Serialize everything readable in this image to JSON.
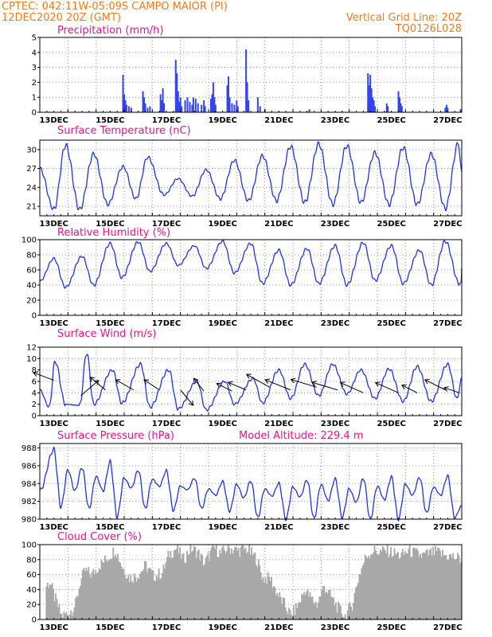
{
  "header": {
    "line1_left": "CPTEC:   042:11W-05:09S   CAMPO MAIOR (PI)",
    "line2_left": "12DEC2020 20Z (GMT)",
    "line1_right": "Vertical Grid Line: 20Z",
    "line2_right": "TQ0126L028"
  },
  "x_axis": {
    "labels": [
      "13DEC",
      "15DEC",
      "17DEC",
      "19DEC",
      "21DEC",
      "23DEC",
      "25DEC",
      "27DEC"
    ],
    "start_hours": 0,
    "end_hours": 360
  },
  "colors": {
    "line": "#2233dd",
    "bar": "#3344ee",
    "cloud": "#a8a8a8",
    "header": "#f07c1c",
    "title": "#e8158c"
  },
  "chart_data": [
    {
      "id": "precip",
      "type": "bar",
      "title": "Precipitation (mm/h)",
      "yticks": [
        0,
        1,
        2,
        3,
        4,
        5
      ],
      "ylim": [
        0,
        5
      ],
      "spikes": [
        [
          71,
          2.5
        ],
        [
          72,
          1.2
        ],
        [
          73,
          0.8
        ],
        [
          74,
          0.5
        ],
        [
          76,
          0.4
        ],
        [
          78,
          0.3
        ],
        [
          88,
          1.4
        ],
        [
          89,
          1.0
        ],
        [
          90,
          0.6
        ],
        [
          92,
          0.3
        ],
        [
          94,
          0.4
        ],
        [
          103,
          1.2
        ],
        [
          104,
          0.8
        ],
        [
          105,
          1.6
        ],
        [
          106,
          0.6
        ],
        [
          116,
          3.5
        ],
        [
          117,
          2.6
        ],
        [
          118,
          1.4
        ],
        [
          119,
          0.7
        ],
        [
          120,
          1.0
        ],
        [
          121,
          0.4
        ],
        [
          124,
          0.8
        ],
        [
          126,
          1.0
        ],
        [
          128,
          0.7
        ],
        [
          130,
          0.5
        ],
        [
          131,
          1.0
        ],
        [
          133,
          0.9
        ],
        [
          135,
          0.6
        ],
        [
          138,
          0.5
        ],
        [
          140,
          0.8
        ],
        [
          141,
          0.4
        ],
        [
          146,
          0.9
        ],
        [
          147,
          1.2
        ],
        [
          148,
          2.0
        ],
        [
          149,
          1.0
        ],
        [
          150,
          0.5
        ],
        [
          160,
          1.8
        ],
        [
          161,
          2.4
        ],
        [
          162,
          1.0
        ],
        [
          164,
          0.6
        ],
        [
          166,
          0.5
        ],
        [
          168,
          0.8
        ],
        [
          169,
          0.4
        ],
        [
          176,
          4.2
        ],
        [
          177,
          2.0
        ],
        [
          178,
          0.8
        ],
        [
          186,
          1.0
        ],
        [
          188,
          0.4
        ],
        [
          192,
          0.2
        ],
        [
          230,
          0.2
        ],
        [
          280,
          2.6
        ],
        [
          281,
          1.8
        ],
        [
          282,
          2.5
        ],
        [
          283,
          1.6
        ],
        [
          284,
          1.0
        ],
        [
          285,
          0.8
        ],
        [
          286,
          0.4
        ],
        [
          296,
          0.6
        ],
        [
          297,
          0.4
        ],
        [
          306,
          1.4
        ],
        [
          307,
          1.0
        ],
        [
          308,
          0.6
        ],
        [
          309,
          0.4
        ],
        [
          346,
          0.3
        ],
        [
          347,
          0.5
        ],
        [
          348,
          0.3
        ],
        [
          359,
          0.2
        ]
      ]
    },
    {
      "id": "temperature",
      "type": "line",
      "title": "Surface Temperature (nC)",
      "yticks": [
        21,
        24,
        27,
        30
      ],
      "ylim": [
        19.5,
        31.5
      ],
      "minima": [
        [
          0,
          27.0
        ],
        [
          12,
          20.5
        ],
        [
          34,
          20.5
        ],
        [
          58,
          21.3
        ],
        [
          82,
          22.2
        ],
        [
          106,
          22.8
        ],
        [
          130,
          22.6
        ],
        [
          154,
          22.2
        ],
        [
          178,
          21.9
        ],
        [
          202,
          21.9
        ],
        [
          226,
          21.6
        ],
        [
          250,
          21.3
        ],
        [
          274,
          21.6
        ],
        [
          298,
          21.3
        ],
        [
          322,
          21.3
        ],
        [
          346,
          20.7
        ],
        [
          360,
          26.5
        ]
      ],
      "maxima": [
        [
          22,
          30.7
        ],
        [
          46,
          29.3
        ],
        [
          71,
          27.3
        ],
        [
          92,
          28.8
        ],
        [
          118,
          25.4
        ],
        [
          142,
          26.8
        ],
        [
          166,
          28.3
        ],
        [
          190,
          29.0
        ],
        [
          214,
          30.5
        ],
        [
          238,
          30.9
        ],
        [
          262,
          30.6
        ],
        [
          286,
          29.5
        ],
        [
          310,
          30.3
        ],
        [
          334,
          29.3
        ],
        [
          357,
          30.9
        ]
      ]
    },
    {
      "id": "humidity",
      "type": "line",
      "title": "Relative Humidity (%)",
      "yticks": [
        0,
        20,
        40,
        60,
        80,
        100
      ],
      "ylim": [
        0,
        100
      ],
      "minima": [
        [
          0,
          45
        ],
        [
          22,
          37
        ],
        [
          46,
          40
        ],
        [
          70,
          50
        ],
        [
          94,
          58
        ],
        [
          118,
          66
        ],
        [
          142,
          62
        ],
        [
          166,
          56
        ],
        [
          190,
          42
        ],
        [
          214,
          40
        ],
        [
          238,
          42
        ],
        [
          262,
          40
        ],
        [
          286,
          46
        ],
        [
          310,
          42
        ],
        [
          334,
          40
        ],
        [
          358,
          42
        ],
        [
          360,
          44
        ]
      ],
      "maxima": [
        [
          12,
          75
        ],
        [
          36,
          78
        ],
        [
          60,
          95
        ],
        [
          84,
          97
        ],
        [
          108,
          95
        ],
        [
          132,
          92
        ],
        [
          156,
          98
        ],
        [
          180,
          95
        ],
        [
          204,
          86
        ],
        [
          228,
          88
        ],
        [
          252,
          92
        ],
        [
          276,
          96
        ],
        [
          300,
          92
        ],
        [
          324,
          86
        ],
        [
          346,
          98
        ],
        [
          360,
          62
        ]
      ]
    },
    {
      "id": "wind",
      "type": "line",
      "title": "Surface Wind (m/s)",
      "yticks": [
        0,
        2,
        4,
        6,
        8,
        10,
        12
      ],
      "ylim": [
        0,
        12
      ],
      "minima": [
        [
          0,
          4.5
        ],
        [
          8,
          1.5
        ],
        [
          22,
          2.0
        ],
        [
          34,
          1.8
        ],
        [
          46,
          2.0
        ],
        [
          70,
          2.2
        ],
        [
          94,
          1.5
        ],
        [
          118,
          1.2
        ],
        [
          142,
          1.0
        ],
        [
          166,
          2.0
        ],
        [
          190,
          2.2
        ],
        [
          214,
          3.0
        ],
        [
          238,
          3.5
        ],
        [
          262,
          3.8
        ],
        [
          286,
          3.0
        ],
        [
          310,
          2.5
        ],
        [
          334,
          2.5
        ],
        [
          356,
          3.0
        ]
      ],
      "maxima": [
        [
          13,
          9.5
        ],
        [
          40,
          11.0
        ],
        [
          62,
          8.0
        ],
        [
          86,
          9.0
        ],
        [
          110,
          8.0
        ],
        [
          134,
          6.0
        ],
        [
          158,
          6.0
        ],
        [
          182,
          6.5
        ],
        [
          204,
          8.0
        ],
        [
          226,
          9.0
        ],
        [
          250,
          9.0
        ],
        [
          274,
          8.0
        ],
        [
          298,
          8.2
        ],
        [
          322,
          8.6
        ],
        [
          348,
          9.0
        ],
        [
          360,
          6.5
        ]
      ],
      "arrows": [
        [
          12,
          6.2,
          -8,
          3
        ],
        [
          35,
          3.5,
          7,
          6
        ],
        [
          56,
          4.5,
          -6,
          5
        ],
        [
          80,
          4.5,
          -7,
          4
        ],
        [
          102,
          4.5,
          -6,
          4
        ],
        [
          120,
          4.5,
          5,
          -6
        ],
        [
          140,
          4.3,
          -4,
          5
        ],
        [
          164,
          4.3,
          -6,
          3
        ],
        [
          176,
          4.5,
          -7,
          3
        ],
        [
          196,
          5.0,
          -9,
          5
        ],
        [
          214,
          4.5,
          -10,
          4
        ],
        [
          236,
          5.0,
          -10,
          3
        ],
        [
          254,
          4.5,
          -10,
          3
        ],
        [
          276,
          4.0,
          -9,
          4
        ],
        [
          306,
          4.0,
          -9,
          4
        ],
        [
          322,
          4.0,
          -6,
          3
        ],
        [
          346,
          4.5,
          -8,
          4
        ],
        [
          358,
          4.0,
          -6,
          2
        ]
      ]
    },
    {
      "id": "pressure",
      "type": "line",
      "title": "Surface Pressure (hPa)",
      "annotation": "Model Altitude: 229.4 m",
      "yticks": [
        980,
        982,
        984,
        986,
        988
      ],
      "ylim": [
        980,
        988.5
      ],
      "minima": [
        [
          0,
          983.2
        ],
        [
          18,
          981.4
        ],
        [
          30,
          983.2
        ],
        [
          42,
          981.2
        ],
        [
          54,
          983.2
        ],
        [
          66,
          980.3
        ],
        [
          78,
          983.5
        ],
        [
          90,
          981.2
        ],
        [
          102,
          983.7
        ],
        [
          114,
          981.0
        ],
        [
          126,
          983.3
        ],
        [
          138,
          981.2
        ],
        [
          150,
          982.7
        ],
        [
          162,
          980.9
        ],
        [
          174,
          982.4
        ],
        [
          186,
          980.2
        ],
        [
          198,
          982.6
        ],
        [
          210,
          980.0
        ],
        [
          222,
          982.5
        ],
        [
          234,
          980.1
        ],
        [
          246,
          982.1
        ],
        [
          258,
          980.2
        ],
        [
          270,
          981.9
        ],
        [
          282,
          980.0
        ],
        [
          294,
          982.2
        ],
        [
          306,
          980.0
        ],
        [
          318,
          982.7
        ],
        [
          330,
          980.7
        ],
        [
          342,
          982.7
        ],
        [
          354,
          980.2
        ]
      ],
      "maxima": [
        [
          12,
          987.8
        ],
        [
          24,
          985.5
        ],
        [
          36,
          985.8
        ],
        [
          48,
          984.8
        ],
        [
          60,
          986.4
        ],
        [
          72,
          984.6
        ],
        [
          84,
          985.5
        ],
        [
          96,
          984.5
        ],
        [
          108,
          985.4
        ],
        [
          120,
          983.7
        ],
        [
          132,
          984.6
        ],
        [
          144,
          983.4
        ],
        [
          156,
          984.2
        ],
        [
          168,
          983.9
        ],
        [
          180,
          984.3
        ],
        [
          192,
          983.4
        ],
        [
          204,
          984.0
        ],
        [
          216,
          983.6
        ],
        [
          228,
          984.4
        ],
        [
          240,
          983.9
        ],
        [
          252,
          984.5
        ],
        [
          264,
          983.4
        ],
        [
          276,
          984.6
        ],
        [
          288,
          983.7
        ],
        [
          300,
          984.7
        ],
        [
          312,
          983.9
        ],
        [
          324,
          984.7
        ],
        [
          336,
          983.6
        ],
        [
          348,
          984.8
        ],
        [
          360,
          981.5
        ]
      ]
    },
    {
      "id": "cloud",
      "type": "area",
      "title": "Cloud Cover (%)",
      "yticks": [
        0,
        20,
        40,
        60,
        80,
        100
      ],
      "ylim": [
        0,
        100
      ],
      "profile": [
        [
          0,
          0
        ],
        [
          4,
          0
        ],
        [
          5,
          45
        ],
        [
          8,
          50
        ],
        [
          12,
          30
        ],
        [
          18,
          5
        ],
        [
          24,
          8
        ],
        [
          30,
          20
        ],
        [
          34,
          50
        ],
        [
          38,
          65
        ],
        [
          44,
          60
        ],
        [
          50,
          72
        ],
        [
          56,
          80
        ],
        [
          64,
          94
        ],
        [
          70,
          70
        ],
        [
          76,
          56
        ],
        [
          82,
          58
        ],
        [
          90,
          72
        ],
        [
          96,
          58
        ],
        [
          104,
          62
        ],
        [
          110,
          88
        ],
        [
          116,
          95
        ],
        [
          122,
          80
        ],
        [
          128,
          95
        ],
        [
          134,
          90
        ],
        [
          140,
          75
        ],
        [
          148,
          96
        ],
        [
          154,
          88
        ],
        [
          160,
          96
        ],
        [
          168,
          92
        ],
        [
          176,
          94
        ],
        [
          184,
          82
        ],
        [
          190,
          55
        ],
        [
          196,
          55
        ],
        [
          202,
          35
        ],
        [
          208,
          20
        ],
        [
          214,
          5
        ],
        [
          220,
          20
        ],
        [
          226,
          40
        ],
        [
          230,
          30
        ],
        [
          236,
          20
        ],
        [
          242,
          45
        ],
        [
          248,
          30
        ],
        [
          254,
          15
        ],
        [
          260,
          5
        ],
        [
          266,
          20
        ],
        [
          272,
          60
        ],
        [
          278,
          85
        ],
        [
          284,
          92
        ],
        [
          290,
          90
        ],
        [
          296,
          92
        ],
        [
          302,
          88
        ],
        [
          308,
          85
        ],
        [
          314,
          92
        ],
        [
          320,
          88
        ],
        [
          326,
          85
        ],
        [
          332,
          88
        ],
        [
          338,
          90
        ],
        [
          344,
          86
        ],
        [
          350,
          84
        ],
        [
          356,
          82
        ],
        [
          360,
          80
        ]
      ]
    }
  ]
}
